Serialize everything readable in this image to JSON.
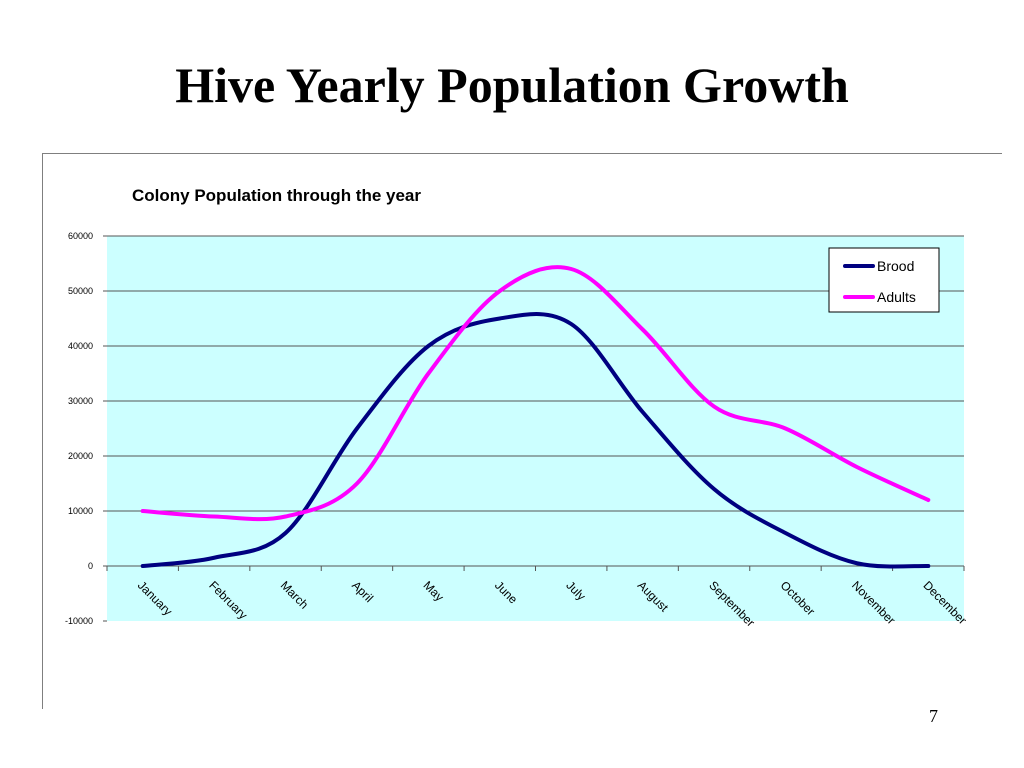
{
  "slide": {
    "title": "Hive Yearly Population Growth",
    "page_number": "7"
  },
  "chart_data": {
    "type": "line",
    "title": "Colony Population  through  the year",
    "xlabel": "",
    "ylabel": "",
    "categories": [
      "January",
      "February",
      "March",
      "April",
      "May",
      "June",
      "July",
      "August",
      "September",
      "October",
      "November",
      "December"
    ],
    "ylim": [
      -10000,
      60000
    ],
    "yticks": [
      -10000,
      0,
      10000,
      20000,
      30000,
      40000,
      50000,
      60000
    ],
    "grid": true,
    "legend_position": "top-right",
    "plot_background": "#ccffff",
    "series": [
      {
        "name": "Brood",
        "color": "#000080",
        "values": [
          0,
          1500,
          6000,
          25000,
          40000,
          45000,
          44000,
          28000,
          14000,
          6000,
          500,
          0
        ]
      },
      {
        "name": "Adults",
        "color": "#ff00ff",
        "values": [
          10000,
          9000,
          9000,
          15000,
          35000,
          50000,
          54000,
          43000,
          29000,
          25000,
          18000,
          12000
        ]
      }
    ]
  }
}
